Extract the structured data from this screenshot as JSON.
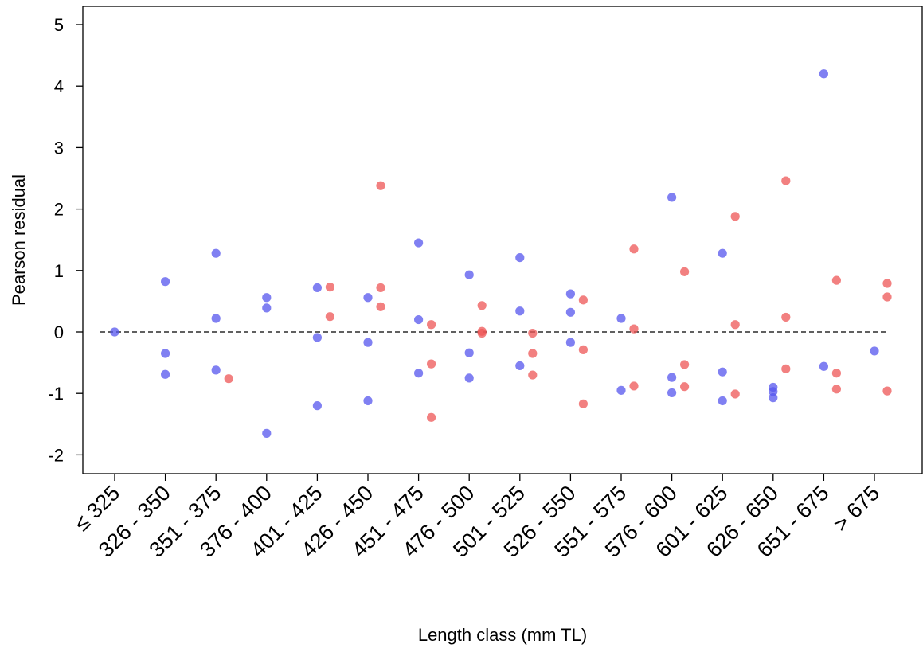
{
  "chart_data": {
    "type": "scatter",
    "title": "",
    "xlabel": "Length class (mm TL)",
    "ylabel": "Pearson residual",
    "categories": [
      "≤ 325",
      "326 - 350",
      "351 - 375",
      "376 - 400",
      "401 - 425",
      "426 - 450",
      "451 - 475",
      "476 - 500",
      "501 - 525",
      "526 - 550",
      "551 - 575",
      "576 - 600",
      "601 - 625",
      "626 - 650",
      "651 - 675",
      "> 675"
    ],
    "ylim": [
      -2.25,
      5.3
    ],
    "yticks": [
      -2,
      -1,
      0,
      1,
      2,
      3,
      4,
      5
    ],
    "reference_line": 0,
    "grid": false,
    "series": [
      {
        "color": "#5555ee",
        "points": [
          {
            "x": "≤ 325",
            "y": 0.0
          },
          {
            "x": "326 - 350",
            "y": 0.82
          },
          {
            "x": "326 - 350",
            "y": -0.35
          },
          {
            "x": "326 - 350",
            "y": -0.69
          },
          {
            "x": "351 - 375",
            "y": 1.28
          },
          {
            "x": "351 - 375",
            "y": 0.22
          },
          {
            "x": "351 - 375",
            "y": -0.62
          },
          {
            "x": "376 - 400",
            "y": 0.56
          },
          {
            "x": "376 - 400",
            "y": 0.39
          },
          {
            "x": "376 - 400",
            "y": -1.65
          },
          {
            "x": "401 - 425",
            "y": 0.72
          },
          {
            "x": "401 - 425",
            "y": -0.09
          },
          {
            "x": "401 - 425",
            "y": -1.2
          },
          {
            "x": "426 - 450",
            "y": 0.56
          },
          {
            "x": "426 - 450",
            "y": -0.17
          },
          {
            "x": "426 - 450",
            "y": -1.12
          },
          {
            "x": "451 - 475",
            "y": 1.45
          },
          {
            "x": "451 - 475",
            "y": 0.2
          },
          {
            "x": "451 - 475",
            "y": -0.67
          },
          {
            "x": "476 - 500",
            "y": 0.93
          },
          {
            "x": "476 - 500",
            "y": -0.34
          },
          {
            "x": "476 - 500",
            "y": -0.75
          },
          {
            "x": "501 - 525",
            "y": 1.21
          },
          {
            "x": "501 - 525",
            "y": 0.34
          },
          {
            "x": "501 - 525",
            "y": -0.55
          },
          {
            "x": "526 - 550",
            "y": 0.62
          },
          {
            "x": "526 - 550",
            "y": 0.32
          },
          {
            "x": "526 - 550",
            "y": -0.17
          },
          {
            "x": "551 - 575",
            "y": 0.22
          },
          {
            "x": "551 - 575",
            "y": -0.95
          },
          {
            "x": "576 - 600",
            "y": 2.19
          },
          {
            "x": "576 - 600",
            "y": -0.74
          },
          {
            "x": "576 - 600",
            "y": -0.99
          },
          {
            "x": "601 - 625",
            "y": 1.28
          },
          {
            "x": "601 - 625",
            "y": -0.65
          },
          {
            "x": "601 - 625",
            "y": -1.12
          },
          {
            "x": "626 - 650",
            "y": -0.9
          },
          {
            "x": "626 - 650",
            "y": -0.97
          },
          {
            "x": "626 - 650",
            "y": -1.07
          },
          {
            "x": "651 - 675",
            "y": 4.2
          },
          {
            "x": "651 - 675",
            "y": -0.56
          },
          {
            "x": "> 675",
            "y": -0.31
          }
        ]
      },
      {
        "color": "#ee5555",
        "points": [
          {
            "x": "351 - 375",
            "y": -0.76
          },
          {
            "x": "401 - 425",
            "y": 0.73
          },
          {
            "x": "401 - 425",
            "y": 0.25
          },
          {
            "x": "426 - 450",
            "y": 2.38
          },
          {
            "x": "426 - 450",
            "y": 0.72
          },
          {
            "x": "426 - 450",
            "y": 0.41
          },
          {
            "x": "451 - 475",
            "y": 0.12
          },
          {
            "x": "451 - 475",
            "y": -0.52
          },
          {
            "x": "451 - 475",
            "y": -1.39
          },
          {
            "x": "476 - 500",
            "y": 0.43
          },
          {
            "x": "476 - 500",
            "y": 0.01
          },
          {
            "x": "476 - 500",
            "y": -0.02
          },
          {
            "x": "501 - 525",
            "y": -0.02
          },
          {
            "x": "501 - 525",
            "y": -0.35
          },
          {
            "x": "501 - 525",
            "y": -0.7
          },
          {
            "x": "526 - 550",
            "y": 0.52
          },
          {
            "x": "526 - 550",
            "y": -0.29
          },
          {
            "x": "526 - 550",
            "y": -1.17
          },
          {
            "x": "551 - 575",
            "y": 1.35
          },
          {
            "x": "551 - 575",
            "y": 0.05
          },
          {
            "x": "551 - 575",
            "y": -0.88
          },
          {
            "x": "576 - 600",
            "y": 0.98
          },
          {
            "x": "576 - 600",
            "y": -0.53
          },
          {
            "x": "576 - 600",
            "y": -0.89
          },
          {
            "x": "601 - 625",
            "y": 1.88
          },
          {
            "x": "601 - 625",
            "y": 0.12
          },
          {
            "x": "601 - 625",
            "y": -1.01
          },
          {
            "x": "626 - 650",
            "y": 2.46
          },
          {
            "x": "626 - 650",
            "y": 0.24
          },
          {
            "x": "626 - 650",
            "y": -0.6
          },
          {
            "x": "651 - 675",
            "y": 0.84
          },
          {
            "x": "651 - 675",
            "y": -0.67
          },
          {
            "x": "651 - 675",
            "y": -0.93
          },
          {
            "x": "> 675",
            "y": 0.79
          },
          {
            "x": "> 675",
            "y": 0.57
          },
          {
            "x": "> 675",
            "y": -0.96
          }
        ]
      }
    ]
  }
}
